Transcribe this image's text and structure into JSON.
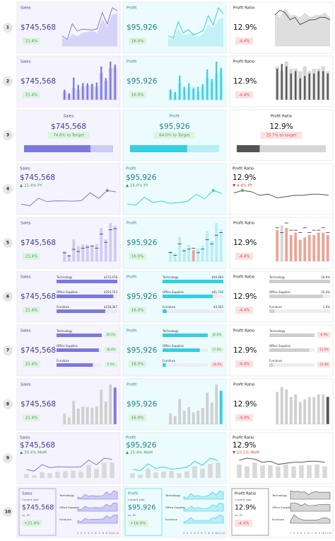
{
  "months": [
    1,
    2,
    3,
    4,
    5,
    6,
    7,
    8,
    9,
    10,
    11,
    12
  ],
  "measures": [
    {
      "title": "Sales",
      "value": "$745,568",
      "color": "#7b78e0",
      "light": "#cdcbf6",
      "bg": "#f5f4fe",
      "text": "#3d3a8c",
      "values": [
        94,
        60,
        205,
        138,
        155,
        152,
        147,
        159,
        307,
        200,
        352,
        325
      ],
      "prior": [
        78,
        50,
        110,
        90,
        120,
        130,
        140,
        120,
        250,
        175,
        290,
        300
      ],
      "categories": [
        {
          "name": "Technology",
          "amount": {
            "value": 272478,
            "label": "$272,478"
          },
          "change": "40.0%",
          "trend": [
            35,
            20,
            80,
            50,
            60,
            55,
            50,
            60,
            120,
            70,
            140,
            120
          ]
        },
        {
          "name": "Office Supplies",
          "amount": {
            "value": 254723,
            "label": "$254,723"
          },
          "change": "38.4%",
          "trend": [
            30,
            22,
            70,
            48,
            50,
            52,
            50,
            52,
            100,
            70,
            120,
            110
          ]
        },
        {
          "name": "Furniture",
          "amount": {
            "value": 218367,
            "label": "$218,367"
          },
          "change": "5.5%",
          "trend": [
            29,
            18,
            55,
            40,
            45,
            45,
            47,
            47,
            87,
            60,
            92,
            95
          ]
        }
      ]
    },
    {
      "title": "Profit",
      "value": "$95,926",
      "color": "#33cfe2",
      "light": "#b8eef5",
      "bg": "#ecfcfe",
      "text": "#1f7f8a",
      "values": [
        12,
        9,
        28,
        15,
        19,
        13,
        15,
        18,
        35,
        24,
        44,
        37
      ],
      "prior": [
        10,
        7,
        20,
        12,
        14,
        15,
        10,
        14,
        25,
        20,
        30,
        33
      ],
      "categories": [
        {
          "name": "Technology",
          "amount": {
            "value": 50684,
            "label": "$50,684"
          },
          "change": "30.6%",
          "trend": [
            6,
            3,
            13,
            7,
            9,
            5,
            7,
            9,
            17,
            10,
            20,
            17
          ]
        },
        {
          "name": "Office Supplies",
          "amount": {
            "value": 41740,
            "label": "$41,740"
          },
          "change": "17.6%",
          "trend": [
            5,
            4,
            11,
            6,
            8,
            6,
            6,
            7,
            14,
            10,
            18,
            15
          ]
        },
        {
          "name": "Furniture",
          "amount": {
            "value": 3502,
            "label": "$3,502"
          },
          "change": "-30.6%",
          "trend": [
            1,
            2,
            4,
            2,
            2,
            2,
            2,
            2,
            4,
            4,
            6,
            5
          ]
        }
      ]
    },
    {
      "title": "Profit Ratio",
      "value": "12.9%",
      "color": "#555555",
      "light": "#d6d6d6",
      "bg": "#ffffff",
      "text": "#111111",
      "values": [
        13,
        15,
        14,
        11,
        12,
        9,
        10,
        11,
        11,
        12,
        12,
        11
      ],
      "prior": [
        14,
        12,
        16,
        13,
        13,
        12,
        14,
        12,
        13,
        13,
        14,
        12
      ],
      "categories": [
        {
          "name": "Technology",
          "amount": {
            "value": 18.6,
            "label": "18.6%"
          },
          "change": "-6.9%",
          "trend": [
            17,
            15,
            16,
            14,
            15,
            9,
            14,
            15,
            14,
            14,
            14,
            14
          ]
        },
        {
          "name": "Office Supplies",
          "amount": {
            "value": 16.4,
            "label": "16.4%"
          },
          "change": "-15.0%",
          "trend": [
            17,
            18,
            16,
            12,
            16,
            12,
            12,
            13,
            14,
            14,
            15,
            14
          ]
        },
        {
          "name": "Furniture",
          "amount": {
            "value": 1.6,
            "label": "1.6%"
          },
          "change": "-10.4%",
          "trend": [
            3,
            11,
            7,
            5,
            4,
            4,
            4,
            4,
            5,
            7,
            7,
            5
          ]
        }
      ]
    }
  ],
  "rows": [
    {
      "number": "1",
      "style": "area",
      "badges": [
        "21.4%",
        "16.0%",
        "-4.4%"
      ],
      "tones": [
        "good",
        "good",
        "bad"
      ]
    },
    {
      "number": "2",
      "style": "bars",
      "badges": [
        "21.4%",
        "16.0%",
        "-4.4%"
      ],
      "tones": [
        "good",
        "good",
        "bad"
      ]
    },
    {
      "number": "3",
      "style": "progress",
      "badges": [
        {
          "value": 74.6,
          "label": "74.6% to Target"
        },
        {
          "value": 64.0,
          "label": "64.0% to Target"
        },
        {
          "value": 25.7,
          "label": "25.7% to target"
        }
      ],
      "tones": [
        "good",
        "good",
        "bad"
      ]
    },
    {
      "number": "4",
      "style": "line",
      "badges": [
        "▲ 21.4% PY",
        "▲ 16.0% PY",
        "▼ 4.4% PY"
      ],
      "tones": [
        "good",
        "good",
        "bad"
      ]
    },
    {
      "number": "5",
      "style": "target",
      "badges": [
        "21.4%",
        "16.0%",
        "-4.4%"
      ],
      "tones": [
        "good",
        "good",
        "bad"
      ]
    },
    {
      "number": "6",
      "style": "hbar",
      "badges": [
        "21.4%",
        "16.0%",
        "-4.4%"
      ],
      "tones": [
        "good",
        "good",
        "bad"
      ]
    },
    {
      "number": "7",
      "style": "hbarchange",
      "badges": [
        "21.4%",
        "16.0%",
        "-4.4%"
      ],
      "tones": [
        "good",
        "good",
        "bad"
      ]
    },
    {
      "number": "8",
      "style": "tall",
      "badges": [
        "21.4%",
        "16.0%",
        "-4.4%"
      ],
      "tones": [
        "good",
        "good",
        "bad"
      ]
    },
    {
      "number": "9",
      "style": "combo",
      "badges": [
        "▲ 39.4% MoM",
        "▲ 25.4% MoM",
        "▼ 10.1% MoM"
      ],
      "tones": [
        "good",
        "good",
        "bad"
      ]
    },
    {
      "number": "10",
      "style": "spark",
      "badges": [
        "+21.4%",
        "+16.0%",
        "-4.4%"
      ],
      "tones": [
        "good",
        "good",
        "bad"
      ],
      "caption": "Current year",
      "compare": "vs. PY"
    }
  ]
}
